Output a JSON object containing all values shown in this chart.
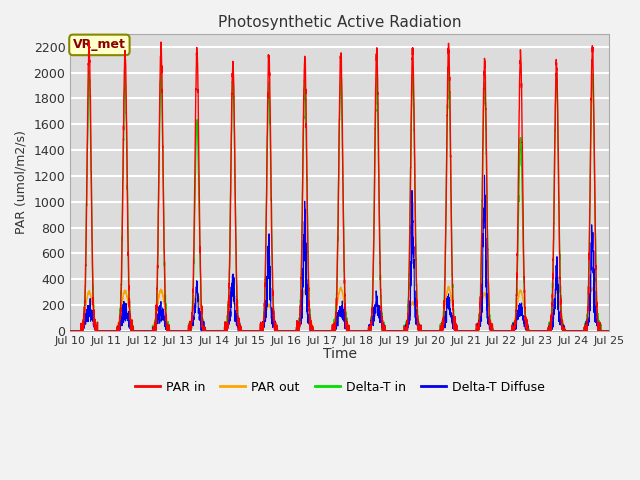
{
  "title": "Photosynthetic Active Radiation",
  "xlabel": "Time",
  "ylabel": "PAR (umol/m2/s)",
  "annotation": "VR_met",
  "x_tick_labels": [
    "Jul 10",
    "Jul 11",
    "Jul 12",
    "Jul 13",
    "Jul 14",
    "Jul 15",
    "Jul 16",
    "Jul 17",
    "Jul 18",
    "Jul 19",
    "Jul 20",
    "Jul 21",
    "Jul 22",
    "Jul 23",
    "Jul 24",
    "Jul 25"
  ],
  "ylim": [
    0,
    2300
  ],
  "yticks": [
    0,
    200,
    400,
    600,
    800,
    1000,
    1200,
    1400,
    1600,
    1800,
    2000,
    2200
  ],
  "plot_bg_color": "#dcdcdc",
  "grid_color": "#ffffff",
  "colors": {
    "PAR_in": "#ff0000",
    "PAR_out": "#ffa500",
    "Delta_T_in": "#00dd00",
    "Delta_T_Diffuse": "#0000ee"
  },
  "legend_labels": [
    "PAR in",
    "PAR out",
    "Delta-T in",
    "Delta-T Diffuse"
  ],
  "n_days": 15,
  "pts_per_day": 288
}
